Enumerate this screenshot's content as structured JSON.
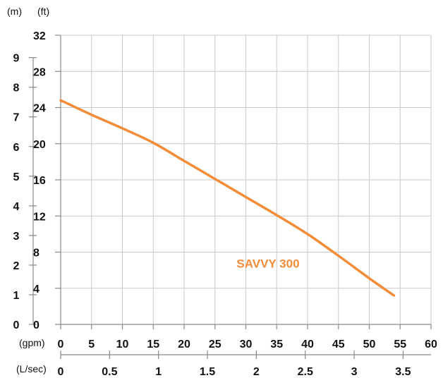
{
  "chart_data": {
    "type": "line",
    "x_axis_primary": {
      "unit_label": "(gpm)",
      "ticks": [
        0,
        5,
        10,
        15,
        20,
        25,
        30,
        35,
        40,
        45,
        50,
        55,
        60
      ],
      "range": [
        0,
        60
      ]
    },
    "x_axis_secondary": {
      "unit_label": "(L/sec)",
      "ticks": [
        "0",
        "0.5",
        "1",
        "1.5",
        "2",
        "2.5",
        "3",
        "3.5"
      ]
    },
    "y_axis_primary": {
      "unit_label": "(ft)",
      "ticks": [
        0,
        4,
        8,
        12,
        16,
        20,
        24,
        28,
        32
      ],
      "range": [
        0,
        32
      ]
    },
    "y_axis_secondary": {
      "unit_label": "(m)",
      "ticks": [
        "0",
        "1",
        "2",
        "3",
        "4",
        "5",
        "6",
        "7",
        "8",
        "9"
      ]
    },
    "grid": true,
    "series": [
      {
        "name": "SAVVY 300",
        "color": "#F28C38",
        "points": [
          [
            0,
            24.8
          ],
          [
            5,
            23.2
          ],
          [
            10,
            21.7
          ],
          [
            15,
            20.1
          ],
          [
            20,
            18.1
          ],
          [
            25,
            16.1
          ],
          [
            30,
            14.1
          ],
          [
            35,
            12.1
          ],
          [
            40,
            10.0
          ],
          [
            45,
            7.6
          ],
          [
            50,
            5.1
          ],
          [
            54,
            3.2
          ]
        ]
      }
    ]
  }
}
